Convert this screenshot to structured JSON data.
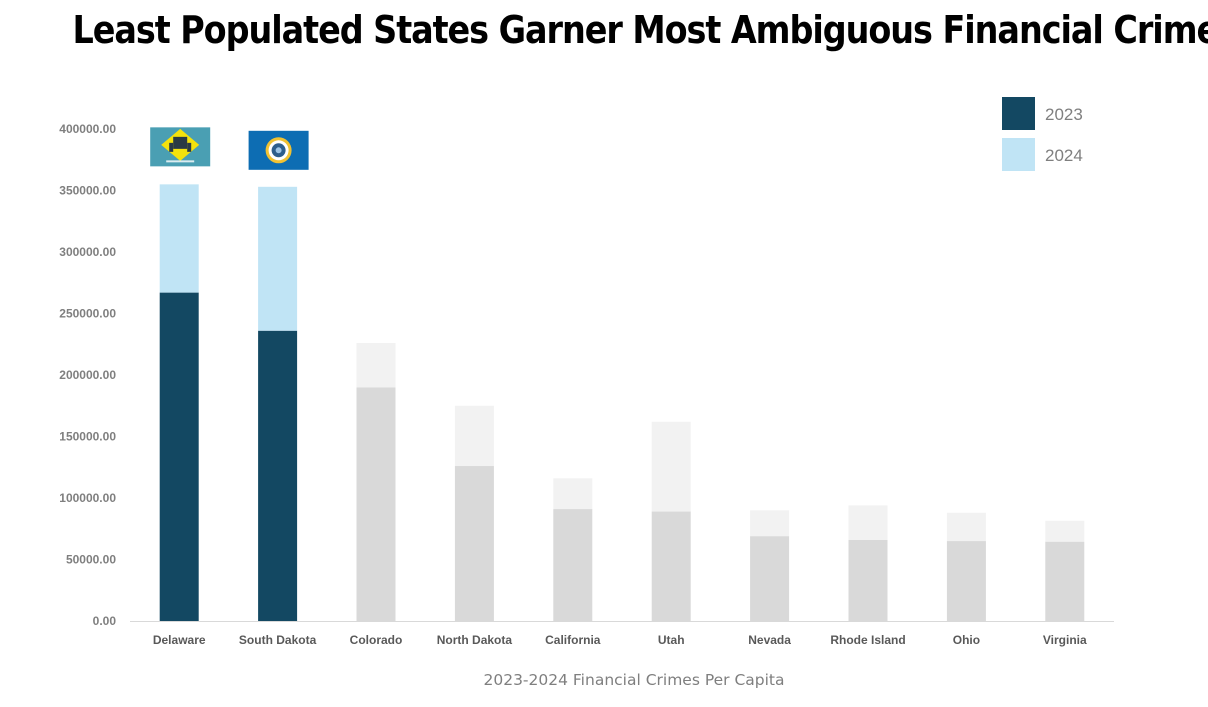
{
  "title": "Least Populated States Garner Most Ambiguous Financial Crimes",
  "colors": {
    "highlight_2023": "#134862",
    "highlight_2024": "#c0e4f5",
    "muted_2023": "#d9d9d9",
    "muted_2024": "#f2f2f2",
    "axis": "#d9d9d9"
  },
  "flags": [
    {
      "state": "Delaware",
      "icon": "delaware-flag-icon",
      "field": "#4a9fb3",
      "diamond": "#f4e20c",
      "seal": "#2a3a44"
    },
    {
      "state": "South Dakota",
      "icon": "south-dakota-flag-icon",
      "field": "#0d6db3",
      "seal_ring": "#f1c232",
      "seal": "#2e5e8c"
    }
  ],
  "chart_data": {
    "type": "bar",
    "stacked": true,
    "categories": [
      "Delaware",
      "South Dakota",
      "Colorado",
      "North Dakota",
      "California",
      "Utah",
      "Nevada",
      "Rhode Island",
      "Ohio",
      "Virginia"
    ],
    "series": [
      {
        "name": "2023",
        "values": [
          267000,
          236000,
          190000,
          126000,
          91000,
          89000,
          69000,
          66000,
          65000,
          64500
        ]
      },
      {
        "name": "2024",
        "values": [
          88000,
          117000,
          36000,
          49000,
          25000,
          73000,
          21000,
          28000,
          23000,
          17000
        ]
      }
    ],
    "highlighted_categories": [
      "Delaware",
      "South Dakota"
    ],
    "xlabel": "2023-2024 Financial Crimes Per Capita",
    "ylabel": "",
    "ylim": [
      0,
      400000
    ],
    "yticks": [
      "0.00",
      "50000.00",
      "100000.00",
      "150000.00",
      "200000.00",
      "250000.00",
      "300000.00",
      "350000.00",
      "400000.00"
    ],
    "ytick_values": [
      0,
      50000,
      100000,
      150000,
      200000,
      250000,
      300000,
      350000,
      400000
    ],
    "legend_position": "top-right",
    "grid": false
  }
}
